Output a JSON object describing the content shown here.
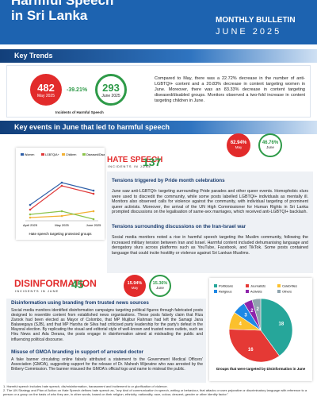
{
  "header": {
    "title_line1": "Harmful Speech",
    "title_line2": "in Sri Lanka",
    "bulletin": "MONTHLY BULLETIN",
    "period": "JUNE 2025"
  },
  "key_trends": {
    "heading": "Key Trends",
    "may_value": "482",
    "may_label": "May 2025",
    "change": "-39.21%",
    "june_value": "293",
    "june_label": "June 2025",
    "caption": "Incidents of Harmful Speech",
    "text": "Compared to May, there was a 22.72% decrease in the number of anti-LGBTQI+ content and a 20.83% decrease in content targeting women in June. Moreover, there was an 83.33% decrease in content targeting diseased/disabled groups. Monitors observed a two-fold increase in content targeting children in June."
  },
  "key_events": {
    "heading": "Key events in June that led to harmful speech"
  },
  "line_chart": {
    "type": "line",
    "categories": [
      "April 2025",
      "May 2025",
      "June 2025"
    ],
    "ylim": [
      0,
      70
    ],
    "series": [
      {
        "name": "Women",
        "color": "#2e5fa8",
        "values": [
          20,
          48,
          38
        ]
      },
      {
        "name": "LGBTQIA+",
        "color": "#e03a3a",
        "values": [
          14,
          44,
          34
        ]
      },
      {
        "name": "Children",
        "color": "#f2b134",
        "values": [
          4,
          6,
          12
        ]
      },
      {
        "name": "Diseased/Disabled",
        "color": "#8bc34a",
        "values": [
          8,
          12,
          2
        ]
      }
    ],
    "caption": "Hate speech targeting protected groups"
  },
  "hate_speech": {
    "label": "HATE SPEECH",
    "sublabel": "INCIDENTS IN JUNE",
    "count": "137",
    "may_pct": "62.94%",
    "may_label": "May",
    "june_pct": "46.76%",
    "june_label": "June",
    "items": [
      {
        "heading": "Tensions triggered by Pride month celebrations",
        "text": "June saw anti-LGBTQI+ targeting surrounding Pride parades and other queer events. Homophobic slurs were used to discredit the community, while some posts labelled LGBTQI+ individuals as mentally ill. Monitors also observed calls for violence against the community, with individual targeting of prominent queer activists. Moreover, the arrival of the UN High Commissioner for Human Rights in Sri Lanka prompted discussions on the legalisation of same-sex marriages, which received anti-LGBTQI+ backlash."
      },
      {
        "heading": "Tensions surrounding discussions on the Iran-Israel war",
        "text": "Social media monitors noted a rise in harmful speech targeting the Muslim community, following the increased military tension between Iran and Israel. Harmful content included dehumanising language and derogatory slurs across platforms such as YouTube, Facebook, and TikTok. Some posts contained language that could incite hostility or violence against Sri Lankan Muslims."
      }
    ]
  },
  "disinformation": {
    "label": "DISINFORMATION",
    "sublabel": "INCIDENTS IN JUNE",
    "count": "45",
    "may_pct": "15.94%",
    "may_label": "May",
    "june_pct": "15.36%",
    "june_label": "June",
    "items": [
      {
        "heading": "Disinformation using branding from trusted news sources",
        "text": "Social media monitors identified disinformation campaigns targeting political figures through fabricated posts designed to resemble content from established news organisations. These posts falsely claim that Riza Zarook had been elected as Mayor of Colombo, that MP Mujibur Rahman had left the Samagi Jana Balawegaya (SJB), and that MP Harsha de Silva had criticised party leadership for the party's defeat in the Mayoral election. By replicating the visual and editorial style of well-known and trusted news outlets, such as Hiru News and Ada Derana, the posts engage in disinformation aimed at misleading the public and influencing political discourse."
      },
      {
        "heading": "Misuse of GMOA branding in support of arrested doctor",
        "text": "A fake banner circulating online falsely attributed a statement to the Government Medical Officers' Association (GMOA), suggesting support for the release of Dr. Mahesh Wijeratne who was arrested by the Bribery Commission. The banner misused the GMOA's official logo and name to mislead the public."
      }
    ]
  },
  "pie_chart": {
    "type": "pie",
    "categories": [
      "Politicians",
      "Journalists",
      "Celebrities",
      "Religious",
      "Activists",
      "Others"
    ],
    "values": [
      18,
      16,
      4,
      3,
      2,
      2
    ],
    "colors": [
      "#26a69a",
      "#e53935",
      "#fbc02d",
      "#1e88e5",
      "#8e24aa",
      "#90a4ae"
    ],
    "caption": "Groups that were targeted by Disinformation in June"
  },
  "footnotes": [
    "1. Harmful speech includes hate speech, dis/misinformation, harassment and incitement to or glorification of violence.",
    "2. The UN Strategy and Plan of Action on Hate Speech defines hate speech as, \"any kind of communication in speech, writing or behaviour, that attacks or uses pejorative or discriminatory language with reference to a person or a group on the basis of who they are, in other words, based on their religion, ethnicity, nationality, race, colour, descent, gender or other identity factor.\""
  ]
}
